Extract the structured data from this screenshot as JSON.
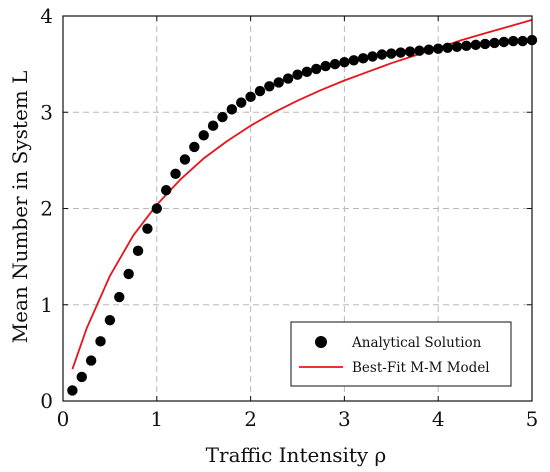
{
  "chart_data": {
    "type": "scatter",
    "title": "",
    "xlabel": "Traffic Intensity ρ",
    "ylabel": "Mean Number in System L",
    "xlim": [
      0,
      5
    ],
    "ylim": [
      0,
      4
    ],
    "xticks": [
      "0",
      "1",
      "2",
      "3",
      "4",
      "5"
    ],
    "yticks": [
      "0",
      "1",
      "2",
      "3",
      "4"
    ],
    "grid": true,
    "legend_position": "bottom-right",
    "series": [
      {
        "name": "Analytical Solution",
        "kind": "scatter",
        "color": "#000000",
        "x": [
          0.1,
          0.2,
          0.3,
          0.4,
          0.5,
          0.6,
          0.7,
          0.8,
          0.9,
          1.0,
          1.1,
          1.2,
          1.3,
          1.4,
          1.5,
          1.6,
          1.7,
          1.8,
          1.9,
          2.0,
          2.1,
          2.2,
          2.3,
          2.4,
          2.5,
          2.6,
          2.7,
          2.8,
          2.9,
          3.0,
          3.1,
          3.2,
          3.3,
          3.4,
          3.5,
          3.6,
          3.7,
          3.8,
          3.9,
          4.0,
          4.1,
          4.2,
          4.3,
          4.4,
          4.5,
          4.6,
          4.7,
          4.8,
          4.9,
          5.0
        ],
        "y": [
          0.11,
          0.25,
          0.42,
          0.62,
          0.84,
          1.08,
          1.32,
          1.56,
          1.79,
          2.0,
          2.19,
          2.36,
          2.51,
          2.64,
          2.76,
          2.86,
          2.95,
          3.03,
          3.1,
          3.16,
          3.22,
          3.27,
          3.31,
          3.35,
          3.39,
          3.42,
          3.45,
          3.48,
          3.5,
          3.52,
          3.54,
          3.56,
          3.58,
          3.6,
          3.61,
          3.62,
          3.63,
          3.64,
          3.65,
          3.66,
          3.67,
          3.68,
          3.69,
          3.7,
          3.71,
          3.72,
          3.73,
          3.74,
          3.74,
          3.75
        ]
      },
      {
        "name": "Best-Fit M-M Model",
        "kind": "line",
        "color": "#e8141b",
        "x": [
          0.1,
          0.25,
          0.5,
          0.75,
          1.0,
          1.25,
          1.5,
          1.75,
          2.0,
          2.25,
          2.5,
          2.75,
          3.0,
          3.25,
          3.5,
          3.75,
          4.0,
          4.25,
          4.5,
          4.75,
          5.0
        ],
        "y": [
          0.33,
          0.75,
          1.3,
          1.72,
          2.04,
          2.3,
          2.52,
          2.7,
          2.86,
          3.0,
          3.12,
          3.23,
          3.33,
          3.42,
          3.51,
          3.59,
          3.67,
          3.75,
          3.82,
          3.89,
          3.96
        ]
      }
    ]
  }
}
